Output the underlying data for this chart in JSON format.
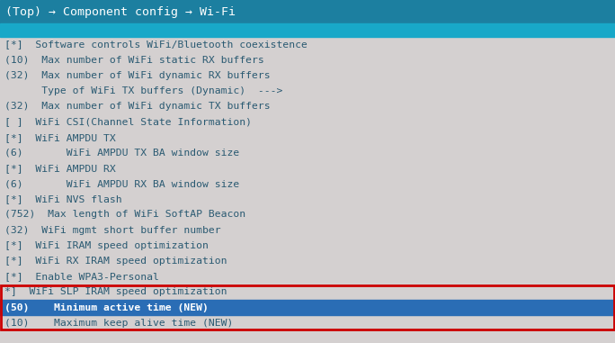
{
  "title_bar_color": "#1c7fa0",
  "title_text": "(Top) → Component config → Wi-Fi",
  "title_text_color": "#ffffff",
  "subtitle_bar_color": "#18a8c8",
  "bg_color": "#d4d0d0",
  "text_color": "#2a5a72",
  "highlight_bg": "#2a6db5",
  "highlight_text_color": "#ffffff",
  "red_box_color": "#cc0000",
  "lines": [
    {
      "text": "[*]  Software controls WiFi/Bluetooth coexistence",
      "highlight": false
    },
    {
      "text": "(10)  Max number of WiFi static RX buffers",
      "highlight": false
    },
    {
      "text": "(32)  Max number of WiFi dynamic RX buffers",
      "highlight": false
    },
    {
      "text": "      Type of WiFi TX buffers (Dynamic)  --->",
      "highlight": false
    },
    {
      "text": "(32)  Max number of WiFi dynamic TX buffers",
      "highlight": false
    },
    {
      "text": "[ ]  WiFi CSI(Channel State Information)",
      "highlight": false
    },
    {
      "text": "[*]  WiFi AMPDU TX",
      "highlight": false
    },
    {
      "text": "(6)       WiFi AMPDU TX BA window size",
      "highlight": false
    },
    {
      "text": "[*]  WiFi AMPDU RX",
      "highlight": false
    },
    {
      "text": "(6)       WiFi AMPDU RX BA window size",
      "highlight": false
    },
    {
      "text": "[*]  WiFi NVS flash",
      "highlight": false
    },
    {
      "text": "(752)  Max length of WiFi SoftAP Beacon",
      "highlight": false
    },
    {
      "text": "(32)  WiFi mgmt short buffer number",
      "highlight": false
    },
    {
      "text": "[*]  WiFi IRAM speed optimization",
      "highlight": false
    },
    {
      "text": "[*]  WiFi RX IRAM speed optimization",
      "highlight": false
    },
    {
      "text": "[*]  Enable WPA3-Personal",
      "highlight": false
    },
    {
      "text": "*]  WiFi SLP IRAM speed optimization",
      "highlight": false,
      "red_box_start": true
    },
    {
      "text": "(50)    Minimum active time (NEW)",
      "highlight": true
    },
    {
      "text": "(10)    Maximum keep alive time (NEW)",
      "highlight": false,
      "red_box_end": true
    }
  ]
}
